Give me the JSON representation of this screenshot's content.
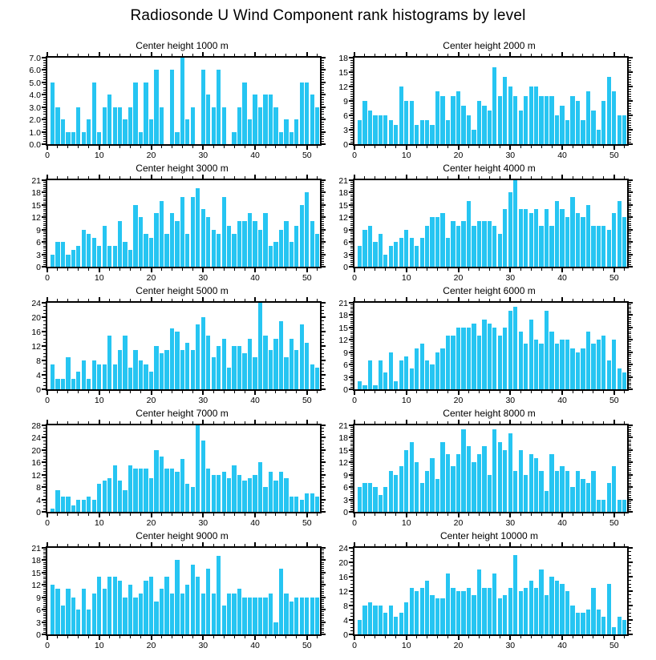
{
  "main_title": "Radiosonde U Wind Component rank histograms by level",
  "colors": {
    "bar": "#26C5F2",
    "axis": "#000000",
    "background": "#FFFFFF"
  },
  "x_axis": {
    "min": 0,
    "max": 52.5,
    "tick_labels": [
      "0",
      "10",
      "20",
      "30",
      "40",
      "50"
    ],
    "tick_values": [
      0,
      10,
      20,
      30,
      40,
      50
    ],
    "minor_step": 2
  },
  "chart_data": [
    {
      "type": "bar",
      "title": "Center height 1000 m",
      "ylim": [
        0,
        7
      ],
      "ytick_labels": [
        "0.0",
        "1.0",
        "2.0",
        "3.0",
        "4.0",
        "5.0",
        "6.0",
        "7.0"
      ],
      "ytick_values": [
        0,
        1,
        2,
        3,
        4,
        5,
        6,
        7
      ],
      "yminor_divs": 5,
      "x": "ranks 1-52",
      "values": [
        5,
        3,
        2,
        1,
        1,
        3,
        1,
        2,
        5,
        1,
        3,
        4,
        3,
        3,
        2,
        3,
        5,
        1,
        5,
        2,
        6,
        3,
        0,
        6,
        1,
        7,
        2,
        3,
        0,
        6,
        4,
        3,
        6,
        3,
        0,
        1,
        3,
        5,
        2,
        4,
        3,
        4,
        4,
        3,
        1,
        2,
        1,
        2,
        5,
        5,
        4,
        3
      ]
    },
    {
      "type": "bar",
      "title": "Center height 2000 m",
      "ylim": [
        0,
        18
      ],
      "ytick_labels": [
        "0",
        "3",
        "6",
        "9",
        "12",
        "15",
        "18"
      ],
      "ytick_values": [
        0,
        3,
        6,
        9,
        12,
        15,
        18
      ],
      "yminor_divs": 6,
      "x": "ranks 1-52",
      "values": [
        5,
        9,
        7,
        6,
        6,
        6,
        5,
        4,
        12,
        9,
        9,
        4,
        5,
        5,
        4,
        11,
        10,
        5,
        10,
        11,
        8,
        6,
        3,
        9,
        8,
        7,
        16,
        10,
        14,
        12,
        10,
        7,
        10,
        12,
        12,
        10,
        10,
        10,
        6,
        8,
        5,
        10,
        9,
        5,
        11,
        7,
        3,
        9,
        14,
        11,
        6,
        6
      ]
    },
    {
      "type": "bar",
      "title": "Center height 3000 m",
      "ylim": [
        0,
        21
      ],
      "ytick_labels": [
        "0",
        "3",
        "6",
        "9",
        "12",
        "15",
        "18",
        "21"
      ],
      "ytick_values": [
        0,
        3,
        6,
        9,
        12,
        15,
        18,
        21
      ],
      "yminor_divs": 6,
      "x": "ranks 1-52",
      "values": [
        3,
        6,
        6,
        3,
        4,
        5,
        9,
        8,
        7,
        5,
        10,
        5,
        5,
        11,
        6,
        4,
        15,
        12,
        8,
        7,
        13,
        16,
        8,
        13,
        11,
        17,
        8,
        17,
        19,
        14,
        12,
        9,
        8,
        17,
        10,
        8,
        11,
        11,
        13,
        11,
        9,
        13,
        5,
        6,
        9,
        11,
        6,
        10,
        15,
        18,
        11,
        8
      ]
    },
    {
      "type": "bar",
      "title": "Center height 4000 m",
      "ylim": [
        0,
        21
      ],
      "ytick_labels": [
        "0",
        "3",
        "6",
        "9",
        "12",
        "15",
        "18",
        "21"
      ],
      "ytick_values": [
        0,
        3,
        6,
        9,
        12,
        15,
        18,
        21
      ],
      "yminor_divs": 6,
      "x": "ranks 1-52",
      "values": [
        5,
        9,
        10,
        6,
        8,
        3,
        5,
        6,
        7,
        9,
        7,
        5,
        7,
        10,
        12,
        12,
        13,
        7,
        11,
        10,
        11,
        16,
        10,
        11,
        11,
        11,
        10,
        8,
        14,
        18,
        21,
        14,
        14,
        13,
        14,
        10,
        14,
        10,
        16,
        14,
        12,
        17,
        13,
        12,
        15,
        10,
        10,
        10,
        9,
        13,
        16,
        12
      ]
    },
    {
      "type": "bar",
      "title": "Center height 5000 m",
      "ylim": [
        0,
        24
      ],
      "ytick_labels": [
        "0",
        "4",
        "8",
        "12",
        "16",
        "20",
        "24"
      ],
      "ytick_values": [
        0,
        4,
        8,
        12,
        16,
        20,
        24
      ],
      "yminor_divs": 4,
      "x": "ranks 1-52",
      "values": [
        7,
        3,
        3,
        9,
        3,
        5,
        8,
        3,
        8,
        7,
        7,
        15,
        7,
        11,
        15,
        6,
        11,
        8,
        7,
        5,
        12,
        10,
        11,
        17,
        16,
        11,
        13,
        11,
        18,
        20,
        15,
        9,
        12,
        14,
        6,
        12,
        12,
        10,
        14,
        9,
        24,
        15,
        11,
        14,
        19,
        9,
        14,
        11,
        18,
        13,
        7,
        6
      ]
    },
    {
      "type": "bar",
      "title": "Center height 6000 m",
      "ylim": [
        0,
        21
      ],
      "ytick_labels": [
        "0",
        "3",
        "6",
        "9",
        "12",
        "15",
        "18",
        "21"
      ],
      "ytick_values": [
        0,
        3,
        6,
        9,
        12,
        15,
        18,
        21
      ],
      "yminor_divs": 6,
      "x": "ranks 1-52",
      "values": [
        2,
        1,
        7,
        1,
        7,
        4,
        9,
        2,
        7,
        8,
        5,
        10,
        11,
        7,
        6,
        9,
        10,
        13,
        13,
        15,
        15,
        15,
        16,
        13,
        17,
        16,
        15,
        13,
        15,
        19,
        20,
        14,
        11,
        17,
        12,
        11,
        19,
        14,
        11,
        12,
        12,
        10,
        9,
        10,
        14,
        11,
        12,
        13,
        7,
        12,
        5,
        4
      ]
    },
    {
      "type": "bar",
      "title": "Center height 7000 m",
      "ylim": [
        0,
        28
      ],
      "ytick_labels": [
        "0",
        "4",
        "8",
        "12",
        "16",
        "20",
        "24",
        "28"
      ],
      "ytick_values": [
        0,
        4,
        8,
        12,
        16,
        20,
        24,
        28
      ],
      "yminor_divs": 4,
      "x": "ranks 1-52",
      "values": [
        1,
        7,
        5,
        5,
        2,
        4,
        4,
        5,
        4,
        9,
        10,
        11,
        15,
        10,
        7,
        15,
        14,
        14,
        14,
        11,
        20,
        18,
        14,
        14,
        13,
        17,
        9,
        8,
        28,
        23,
        14,
        12,
        12,
        13,
        11,
        15,
        12,
        10,
        11,
        12,
        16,
        8,
        13,
        10,
        13,
        11,
        5,
        5,
        4,
        6,
        6,
        5
      ]
    },
    {
      "type": "bar",
      "title": "Center height 8000 m",
      "ylim": [
        0,
        21
      ],
      "ytick_labels": [
        "0",
        "3",
        "6",
        "9",
        "12",
        "15",
        "18",
        "21"
      ],
      "ytick_values": [
        0,
        3,
        6,
        9,
        12,
        15,
        18,
        21
      ],
      "yminor_divs": 6,
      "x": "ranks 1-52",
      "values": [
        6,
        7,
        7,
        6,
        4,
        6,
        10,
        9,
        11,
        15,
        17,
        12,
        7,
        10,
        13,
        8,
        17,
        14,
        11,
        14,
        20,
        16,
        12,
        14,
        16,
        9,
        20,
        17,
        15,
        19,
        10,
        15,
        9,
        14,
        13,
        10,
        5,
        14,
        10,
        11,
        10,
        6,
        10,
        8,
        7,
        10,
        3,
        3,
        7,
        11,
        3,
        3
      ]
    },
    {
      "type": "bar",
      "title": "Center height 9000 m",
      "ylim": [
        0,
        21
      ],
      "ytick_labels": [
        "0",
        "3",
        "6",
        "9",
        "12",
        "15",
        "18",
        "21"
      ],
      "ytick_values": [
        0,
        3,
        6,
        9,
        12,
        15,
        18,
        21
      ],
      "yminor_divs": 6,
      "x": "ranks 1-52",
      "values": [
        12,
        11,
        7,
        11,
        9,
        6,
        11,
        6,
        10,
        14,
        11,
        14,
        14,
        13,
        9,
        12,
        9,
        10,
        13,
        14,
        8,
        11,
        14,
        10,
        18,
        10,
        12,
        17,
        14,
        10,
        16,
        10,
        19,
        7,
        10,
        10,
        11,
        9,
        9,
        9,
        9,
        9,
        10,
        3,
        16,
        10,
        8,
        9,
        9,
        9,
        9,
        9
      ]
    },
    {
      "type": "bar",
      "title": "Center height 10000 m",
      "ylim": [
        0,
        24
      ],
      "ytick_labels": [
        "0",
        "4",
        "8",
        "12",
        "16",
        "20",
        "24"
      ],
      "ytick_values": [
        0,
        4,
        8,
        12,
        16,
        20,
        24
      ],
      "yminor_divs": 4,
      "x": "ranks 1-52",
      "values": [
        4,
        8,
        9,
        8,
        8,
        6,
        8,
        5,
        6,
        9,
        13,
        12,
        13,
        15,
        11,
        10,
        10,
        17,
        13,
        12,
        12,
        13,
        11,
        18,
        13,
        13,
        17,
        10,
        11,
        13,
        22,
        12,
        13,
        15,
        13,
        18,
        11,
        16,
        15,
        14,
        12,
        8,
        6,
        6,
        7,
        13,
        7,
        5,
        14,
        2,
        5,
        4
      ]
    }
  ]
}
